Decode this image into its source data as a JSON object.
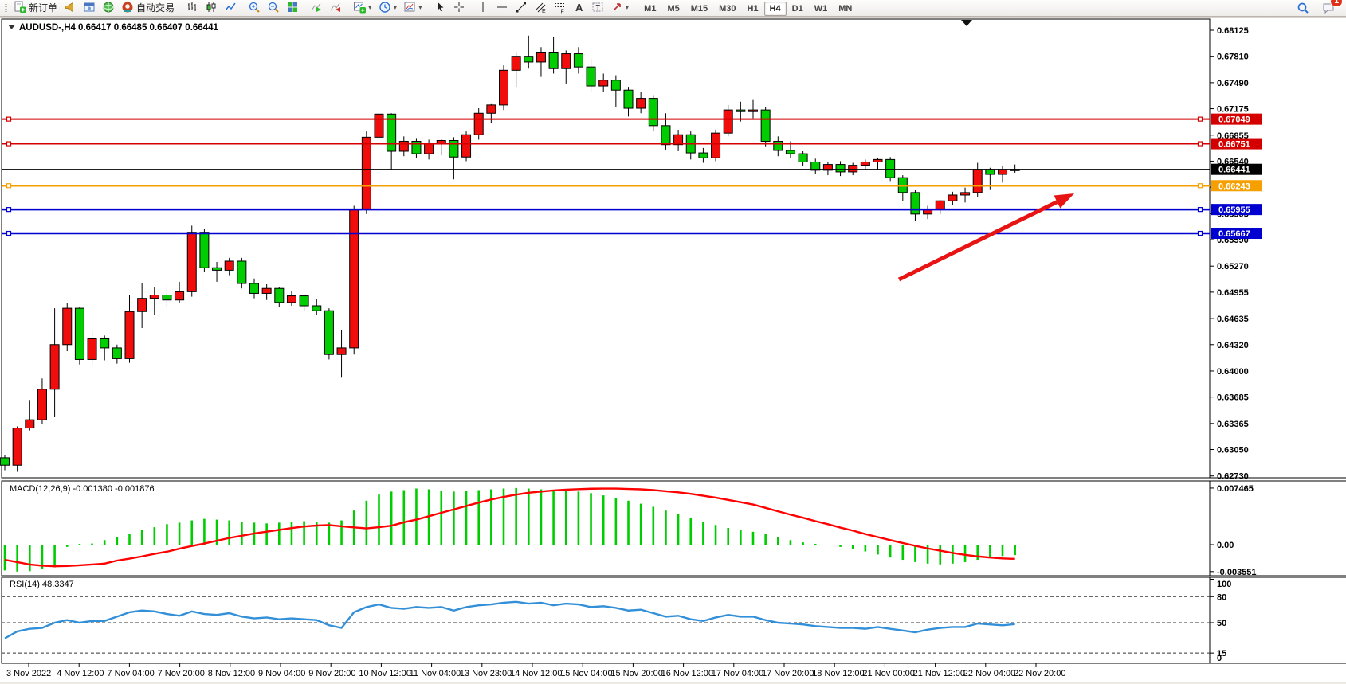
{
  "toolbar": {
    "new_order_label": "新订单",
    "auto_trading_label": "自动交易",
    "buttons": [
      {
        "name": "new-order-button",
        "icon": "new-order-icon",
        "label": "新订单"
      },
      {
        "name": "news-button",
        "icon": "horn-icon"
      },
      {
        "name": "market-watch-button",
        "icon": "window-user-icon"
      },
      {
        "name": "signals-button",
        "icon": "globe-icon"
      },
      {
        "name": "auto-trading-button",
        "icon": "autotrading-icon",
        "label": "自动交易"
      },
      {
        "sep": true
      },
      {
        "name": "bar-chart-button",
        "icon": "bar-chart-icon"
      },
      {
        "name": "candle-chart-button",
        "icon": "candle-chart-icon"
      },
      {
        "name": "line-chart-button",
        "icon": "line-chart-icon"
      },
      {
        "sep": true
      },
      {
        "name": "zoom-in-button",
        "icon": "zoom-in-icon"
      },
      {
        "name": "zoom-out-button",
        "icon": "zoom-out-icon"
      },
      {
        "name": "tile-windows-button",
        "icon": "tile-windows-icon"
      },
      {
        "sep": true
      },
      {
        "name": "auto-scroll-button",
        "icon": "auto-scroll-icon"
      },
      {
        "name": "chart-shift-button",
        "icon": "chart-shift-icon"
      },
      {
        "sep": true
      },
      {
        "name": "new-chart-button",
        "icon": "new-chart-icon",
        "dropdown": true
      },
      {
        "name": "periods-button",
        "icon": "clock-icon",
        "dropdown": true
      },
      {
        "name": "templates-button",
        "icon": "template-icon",
        "dropdown": true
      },
      {
        "sep": true
      },
      {
        "name": "cursor-button",
        "icon": "cursor-icon"
      },
      {
        "name": "crosshair-button",
        "icon": "crosshair-icon"
      },
      {
        "sep": true
      },
      {
        "name": "vertical-line-button",
        "icon": "vertical-line-icon"
      },
      {
        "name": "horizontal-line-button",
        "icon": "horizontal-line-icon"
      },
      {
        "name": "trendline-button",
        "icon": "trendline-icon"
      },
      {
        "name": "channel-button",
        "icon": "channel-icon"
      },
      {
        "name": "fibonacci-button",
        "icon": "fibonacci-icon"
      },
      {
        "name": "text-button",
        "icon": "text-icon"
      },
      {
        "name": "label-button",
        "icon": "label-icon"
      },
      {
        "name": "arrows-button",
        "icon": "arrow-tools-icon",
        "dropdown": true
      },
      {
        "sep": true
      }
    ],
    "timeframes": [
      "M1",
      "M5",
      "M15",
      "M30",
      "H1",
      "H4",
      "D1",
      "W1",
      "MN"
    ],
    "active_timeframe": "H4",
    "notification_count": "1"
  },
  "chart_data": {
    "type": "candlestick",
    "title": "AUDUSD-,H4",
    "ohlc_text": "0.66417 0.66485 0.66407 0.66441",
    "open": 0.66417,
    "high": 0.66485,
    "low": 0.66407,
    "close": 0.66441,
    "ylim": [
      0.6273,
      0.68125
    ],
    "price_axis_ticks": [
      0.68125,
      0.6781,
      0.6749,
      0.67175,
      0.66855,
      0.6654,
      0.66225,
      0.65905,
      0.6559,
      0.6527,
      0.64955,
      0.64635,
      0.6432,
      0.64,
      0.63685,
      0.63365,
      0.6305,
      0.6273
    ],
    "hlines": [
      {
        "price": 0.67049,
        "color": "#d40000",
        "width": 2,
        "handles": true
      },
      {
        "price": 0.66751,
        "color": "#d40000",
        "width": 2,
        "handles": true
      },
      {
        "price": 0.66441,
        "color": "#000000",
        "width": 1.2,
        "handles": false,
        "current": true
      },
      {
        "price": 0.66243,
        "color": "#f5a000",
        "width": 2.5,
        "handles": true
      },
      {
        "price": 0.65955,
        "color": "#0000d0",
        "width": 2.5,
        "handles": true
      },
      {
        "price": 0.65667,
        "color": "#0000d0",
        "width": 2.5,
        "handles": true
      }
    ],
    "candles": [
      [
        0.6295,
        0.6298,
        0.628,
        0.6286
      ],
      [
        0.6286,
        0.6333,
        0.6278,
        0.6331
      ],
      [
        0.6331,
        0.6365,
        0.6328,
        0.6341
      ],
      [
        0.6341,
        0.6391,
        0.6336,
        0.6378
      ],
      [
        0.6378,
        0.6476,
        0.6344,
        0.6432
      ],
      [
        0.6432,
        0.6482,
        0.6424,
        0.6476
      ],
      [
        0.6476,
        0.6478,
        0.6408,
        0.6414
      ],
      [
        0.6414,
        0.6448,
        0.6408,
        0.6439
      ],
      [
        0.6439,
        0.6443,
        0.6413,
        0.6428
      ],
      [
        0.6428,
        0.6432,
        0.6409,
        0.6415
      ],
      [
        0.6415,
        0.6492,
        0.641,
        0.6472
      ],
      [
        0.6472,
        0.6506,
        0.6452,
        0.6488
      ],
      [
        0.6488,
        0.6502,
        0.6468,
        0.6492
      ],
      [
        0.6492,
        0.6501,
        0.6478,
        0.6486
      ],
      [
        0.6486,
        0.6508,
        0.6482,
        0.6496
      ],
      [
        0.6496,
        0.6576,
        0.649,
        0.6568
      ],
      [
        0.6568,
        0.6572,
        0.652,
        0.6525
      ],
      [
        0.6525,
        0.6532,
        0.6508,
        0.6522
      ],
      [
        0.6522,
        0.6537,
        0.6516,
        0.6533
      ],
      [
        0.6533,
        0.6537,
        0.65,
        0.6506
      ],
      [
        0.6506,
        0.6512,
        0.6488,
        0.6494
      ],
      [
        0.6494,
        0.6505,
        0.6486,
        0.65
      ],
      [
        0.65,
        0.6502,
        0.6478,
        0.6483
      ],
      [
        0.6483,
        0.6497,
        0.6479,
        0.6491
      ],
      [
        0.6491,
        0.6493,
        0.6472,
        0.6479
      ],
      [
        0.6479,
        0.6487,
        0.6468,
        0.6473
      ],
      [
        0.6473,
        0.6476,
        0.6414,
        0.642
      ],
      [
        0.642,
        0.645,
        0.6392,
        0.6428
      ],
      [
        0.6428,
        0.66,
        0.642,
        0.6596
      ],
      [
        0.6596,
        0.669,
        0.659,
        0.6683
      ],
      [
        0.6683,
        0.6723,
        0.6678,
        0.6711
      ],
      [
        0.6711,
        0.6712,
        0.6644,
        0.6666
      ],
      [
        0.6666,
        0.6684,
        0.666,
        0.6678
      ],
      [
        0.6678,
        0.6682,
        0.6658,
        0.6663
      ],
      [
        0.6663,
        0.668,
        0.6656,
        0.6676
      ],
      [
        0.6676,
        0.6681,
        0.6661,
        0.6679
      ],
      [
        0.6679,
        0.6683,
        0.6632,
        0.6659
      ],
      [
        0.6659,
        0.669,
        0.6654,
        0.6686
      ],
      [
        0.6686,
        0.6718,
        0.668,
        0.6712
      ],
      [
        0.6712,
        0.6724,
        0.67,
        0.6722
      ],
      [
        0.6722,
        0.677,
        0.6716,
        0.6764
      ],
      [
        0.6764,
        0.6786,
        0.6744,
        0.6781
      ],
      [
        0.6781,
        0.6806,
        0.6766,
        0.6774
      ],
      [
        0.6774,
        0.6792,
        0.6756,
        0.6786
      ],
      [
        0.6786,
        0.6804,
        0.676,
        0.6766
      ],
      [
        0.6766,
        0.6788,
        0.6748,
        0.6784
      ],
      [
        0.6784,
        0.6792,
        0.676,
        0.6768
      ],
      [
        0.6768,
        0.6778,
        0.6738,
        0.6745
      ],
      [
        0.6745,
        0.676,
        0.6738,
        0.6752
      ],
      [
        0.6752,
        0.6758,
        0.672,
        0.674
      ],
      [
        0.674,
        0.6744,
        0.6708,
        0.6718
      ],
      [
        0.6718,
        0.6738,
        0.6712,
        0.673
      ],
      [
        0.673,
        0.6734,
        0.669,
        0.6697
      ],
      [
        0.6697,
        0.6712,
        0.6668,
        0.6674
      ],
      [
        0.6674,
        0.6692,
        0.6666,
        0.6686
      ],
      [
        0.6686,
        0.669,
        0.6656,
        0.6664
      ],
      [
        0.6664,
        0.667,
        0.6652,
        0.6658
      ],
      [
        0.6658,
        0.6692,
        0.6654,
        0.6688
      ],
      [
        0.6688,
        0.6722,
        0.6684,
        0.6716
      ],
      [
        0.6716,
        0.6726,
        0.6702,
        0.6714
      ],
      [
        0.6714,
        0.6729,
        0.6706,
        0.6716
      ],
      [
        0.6716,
        0.672,
        0.6672,
        0.6678
      ],
      [
        0.6678,
        0.6684,
        0.666,
        0.6667
      ],
      [
        0.6667,
        0.6678,
        0.6658,
        0.6663
      ],
      [
        0.6663,
        0.6666,
        0.6648,
        0.6653
      ],
      [
        0.6653,
        0.6657,
        0.6638,
        0.6643
      ],
      [
        0.6643,
        0.6653,
        0.6637,
        0.665
      ],
      [
        0.665,
        0.6654,
        0.6636,
        0.6641
      ],
      [
        0.6641,
        0.6652,
        0.6637,
        0.6649
      ],
      [
        0.6649,
        0.6656,
        0.6644,
        0.6653
      ],
      [
        0.6653,
        0.6658,
        0.6644,
        0.6656
      ],
      [
        0.6656,
        0.6659,
        0.663,
        0.6634
      ],
      [
        0.6634,
        0.6637,
        0.6606,
        0.6616
      ],
      [
        0.6616,
        0.6619,
        0.6582,
        0.659
      ],
      [
        0.659,
        0.66,
        0.6584,
        0.6596
      ],
      [
        0.6596,
        0.6607,
        0.659,
        0.6606
      ],
      [
        0.6606,
        0.6617,
        0.6601,
        0.6613
      ],
      [
        0.6613,
        0.6622,
        0.6604,
        0.6616
      ],
      [
        0.6616,
        0.6652,
        0.6611,
        0.6644
      ],
      [
        0.6644,
        0.6646,
        0.662,
        0.6638
      ],
      [
        0.6638,
        0.6648,
        0.6628,
        0.6644
      ],
      [
        0.6644,
        0.665,
        0.664,
        0.66441
      ]
    ],
    "date_labels": [
      "3 Nov 2022",
      "4 Nov 12:00",
      "7 Nov 04:00",
      "7 Nov 20:00",
      "8 Nov 12:00",
      "9 Nov 04:00",
      "9 Nov 20:00",
      "10 Nov 12:00",
      "11 Nov 04:00",
      "13 Nov 23:00",
      "14 Nov 12:00",
      "15 Nov 04:00",
      "15 Nov 20:00",
      "16 Nov 12:00",
      "17 Nov 04:00",
      "17 Nov 20:00",
      "18 Nov 12:00",
      "21 Nov 00:00",
      "21 Nov 12:00",
      "22 Nov 04:00",
      "22 Nov 20:00"
    ],
    "indicators": {
      "macd": {
        "label": "MACD(12,26,9) -0.001380 -0.001876",
        "value_main": -0.00138,
        "value_signal": -0.001876,
        "axis_labels": [
          "0.007465",
          "0.00",
          "-0.003551"
        ],
        "max": 0.007465,
        "min": -0.003551,
        "histogram": [
          -0.0034,
          -0.00355,
          -0.0035,
          -0.0032,
          -0.003,
          -0.0003,
          0.0001,
          0.00015,
          0.0006,
          0.001,
          0.0014,
          0.0019,
          0.0023,
          0.0027,
          0.0029,
          0.0032,
          0.0034,
          0.0033,
          0.0032,
          0.003,
          0.0029,
          0.0028,
          0.0029,
          0.003,
          0.0031,
          0.003,
          0.0029,
          0.0032,
          0.0045,
          0.0058,
          0.0066,
          0.007,
          0.0072,
          0.0074,
          0.0073,
          0.0071,
          0.007,
          0.0071,
          0.0072,
          0.0073,
          0.0074,
          0.007465,
          0.0074,
          0.0073,
          0.0072,
          0.0071,
          0.007,
          0.0068,
          0.0065,
          0.0062,
          0.0058,
          0.0054,
          0.005,
          0.0045,
          0.004,
          0.0035,
          0.003,
          0.0026,
          0.0022,
          0.0019,
          0.0017,
          0.0014,
          0.001,
          0.0006,
          0.0003,
          0.0001,
          -0.0001,
          -0.0003,
          -0.0006,
          -0.0009,
          -0.0013,
          -0.0017,
          -0.002,
          -0.0023,
          -0.0025,
          -0.0026,
          -0.0025,
          -0.0023,
          -0.002,
          -0.0017,
          -0.0015,
          -0.00138
        ],
        "signal": [
          -0.002,
          -0.0023,
          -0.00262,
          -0.00278,
          -0.00285,
          -0.00282,
          -0.00272,
          -0.00262,
          -0.0025,
          -0.0021,
          -0.00185,
          -0.00155,
          -0.00122,
          -0.00093,
          -0.00053,
          -0.00018,
          0.00015,
          0.00052,
          0.00088,
          0.00118,
          0.00148,
          0.00172,
          0.00195,
          0.00219,
          0.0024,
          0.00252,
          0.00258,
          0.00242,
          0.00228,
          0.00215,
          0.0023,
          0.0025,
          0.00295,
          0.0033,
          0.00375,
          0.0042,
          0.00465,
          0.0051,
          0.00555,
          0.00595,
          0.0063,
          0.0066,
          0.00685,
          0.007,
          0.00715,
          0.00725,
          0.00732,
          0.00738,
          0.0074,
          0.0074,
          0.00735,
          0.0073,
          0.0072,
          0.00705,
          0.0069,
          0.0067,
          0.00645,
          0.0062,
          0.0059,
          0.0056,
          0.0053,
          0.00485,
          0.0044,
          0.00395,
          0.00355,
          0.0031,
          0.0027,
          0.00225,
          0.00185,
          0.0014,
          0.001,
          0.0006,
          0.00022,
          -0.00015,
          -0.0005,
          -0.0008,
          -0.0011,
          -0.00135,
          -0.00155,
          -0.0017,
          -0.00182,
          -0.001876
        ]
      },
      "rsi": {
        "label": "RSI(14) 48.3347",
        "value": 48.3347,
        "levels": [
          80,
          50,
          15
        ],
        "axis_labels": [
          "100",
          "80",
          "50",
          "15",
          "0"
        ],
        "values": [
          32,
          40,
          43,
          44,
          50,
          53,
          50,
          52,
          52,
          57,
          62,
          64,
          63,
          60,
          58,
          63,
          60,
          59,
          61,
          57,
          55,
          56,
          54,
          55,
          54,
          53,
          47,
          44,
          62,
          68,
          71,
          67,
          66,
          68,
          67,
          68,
          64,
          68,
          70,
          71,
          73,
          74,
          72,
          73,
          70,
          72,
          71,
          68,
          69,
          67,
          64,
          65,
          61,
          57,
          58,
          54,
          52,
          56,
          59,
          57,
          57,
          53,
          50,
          49,
          48,
          46,
          45,
          44,
          44,
          43,
          45,
          43,
          41,
          39,
          42,
          44,
          45,
          45,
          49,
          48,
          47,
          48.3
        ]
      }
    },
    "annotations": {
      "arrow": {
        "from": [
          1128,
          351
        ],
        "to": [
          1348,
          243
        ],
        "color": "#e81414"
      },
      "shift_triangle": {
        "x": 1213,
        "y": 25
      }
    },
    "colors": {
      "bull": "#f20d0d",
      "bear": "#00ce00",
      "wick": "#000000",
      "macd_hist": "#00cd00",
      "macd_signal": "#ff0000",
      "rsi_line": "#3390d8",
      "badge_red": "#d40000",
      "badge_orange": "#f5a000",
      "badge_blue": "#0000d0",
      "badge_black": "#000000"
    }
  }
}
